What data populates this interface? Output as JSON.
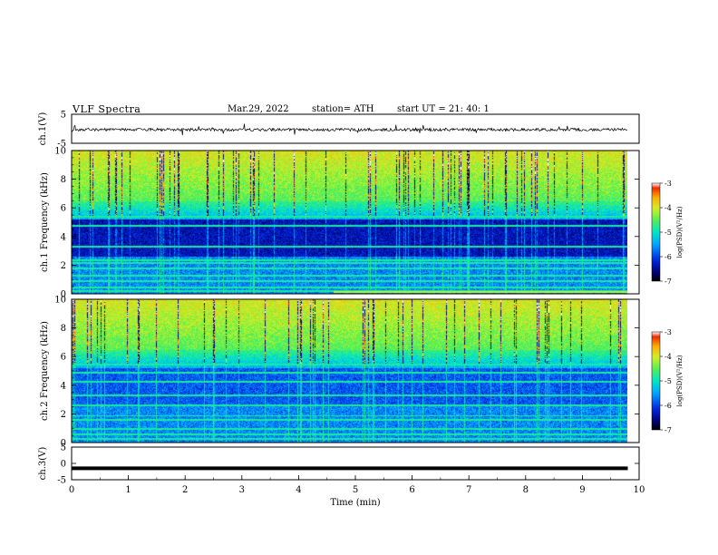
{
  "header": {
    "title": "VLF  Spectra",
    "date": "Mar.29, 2022",
    "station": "station= ATH",
    "start": "start  UT  =    21: 40: 1"
  },
  "chart_data": [
    {
      "type": "line",
      "panel": "ch1-waveform",
      "ylabel": "ch.1(V)",
      "ylim": [
        -5,
        5
      ],
      "yticks": [
        5,
        -5
      ],
      "xlim": [
        0,
        10
      ],
      "series": [
        {
          "color": "#000000",
          "baseline": -0.3,
          "amplitude": 0.6
        }
      ]
    },
    {
      "type": "heatmap",
      "panel": "ch1-spectrogram",
      "ylabel": "ch.1  Frequency  (kHz)",
      "ylim": [
        0,
        10
      ],
      "yticks": [
        0,
        2,
        4,
        6,
        8,
        10
      ],
      "xlim": [
        0,
        10
      ],
      "data_end_min": 9.8,
      "colorbar": {
        "label": "log(PSD)(V²/Hz)",
        "range": [
          -7,
          -3
        ],
        "ticks": [
          -3,
          -4,
          -5,
          -6,
          -7
        ]
      }
    },
    {
      "type": "heatmap",
      "panel": "ch2-spectrogram",
      "ylabel": "ch.2  Frequency  (kHz)",
      "ylim": [
        0,
        10
      ],
      "yticks": [
        0,
        2,
        4,
        6,
        8,
        10
      ],
      "xlim": [
        0,
        10
      ],
      "data_end_min": 9.8,
      "colorbar": {
        "label": "log(PSD)(V²/Hz)",
        "range": [
          -7,
          -3
        ],
        "ticks": [
          -3,
          -4,
          -5,
          -6,
          -7
        ]
      }
    },
    {
      "type": "line",
      "panel": "ch3-waveform",
      "ylabel": "ch.3(V)",
      "ylim": [
        -5,
        5
      ],
      "yticks": [
        5,
        0,
        -5
      ],
      "xlim": [
        0,
        10
      ],
      "series": [
        {
          "color": "#000000",
          "baseline": -1.5,
          "amplitude": 0
        }
      ]
    }
  ],
  "xaxis": {
    "label": "Time  (min)",
    "ticks": [
      0,
      1,
      2,
      3,
      4,
      5,
      6,
      7,
      8,
      9,
      10
    ]
  },
  "colors": {
    "background": "#ffffff",
    "axis": "#000000"
  }
}
